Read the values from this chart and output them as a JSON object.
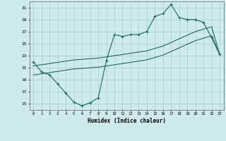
{
  "xlabel": "Humidex (Indice chaleur)",
  "bg_color": "#ceeaea",
  "grid_color": "#aacccc",
  "line_color": "#1a6b5a",
  "xlim": [
    -0.5,
    23.5
  ],
  "ylim": [
    14.0,
    32.0
  ],
  "yticks": [
    15,
    17,
    19,
    21,
    23,
    25,
    27,
    29,
    31
  ],
  "xticks": [
    0,
    1,
    2,
    3,
    4,
    5,
    6,
    7,
    8,
    9,
    10,
    11,
    12,
    13,
    14,
    15,
    16,
    17,
    18,
    19,
    20,
    21,
    22,
    23
  ],
  "series1_x": [
    0,
    1,
    2,
    3,
    4,
    5,
    6,
    7,
    8,
    9,
    10,
    11,
    12,
    13,
    14,
    15,
    16,
    17,
    18,
    19,
    20,
    21,
    22,
    23
  ],
  "series1_y": [
    22.0,
    20.3,
    19.8,
    18.3,
    16.8,
    15.3,
    14.7,
    15.2,
    16.0,
    22.2,
    26.5,
    26.2,
    26.5,
    26.5,
    27.0,
    29.5,
    30.0,
    31.5,
    29.3,
    29.0,
    29.0,
    28.5,
    26.0,
    23.2
  ],
  "series2_x": [
    0,
    1,
    2,
    3,
    4,
    5,
    6,
    7,
    8,
    9,
    10,
    11,
    12,
    13,
    14,
    15,
    16,
    17,
    18,
    19,
    20,
    21,
    22,
    23
  ],
  "series2_y": [
    21.3,
    21.5,
    21.7,
    21.9,
    22.1,
    22.3,
    22.4,
    22.5,
    22.6,
    22.8,
    23.0,
    23.2,
    23.4,
    23.6,
    23.8,
    24.2,
    24.6,
    25.2,
    25.8,
    26.4,
    27.0,
    27.4,
    27.8,
    23.2
  ],
  "series3_x": [
    0,
    1,
    2,
    3,
    4,
    5,
    6,
    7,
    8,
    9,
    10,
    11,
    12,
    13,
    14,
    15,
    16,
    17,
    18,
    19,
    20,
    21,
    22,
    23
  ],
  "series3_y": [
    19.8,
    20.0,
    20.2,
    20.4,
    20.6,
    20.8,
    20.9,
    21.0,
    21.1,
    21.3,
    21.5,
    21.7,
    21.9,
    22.1,
    22.3,
    22.7,
    23.1,
    23.7,
    24.3,
    24.9,
    25.5,
    25.9,
    26.3,
    23.2
  ]
}
